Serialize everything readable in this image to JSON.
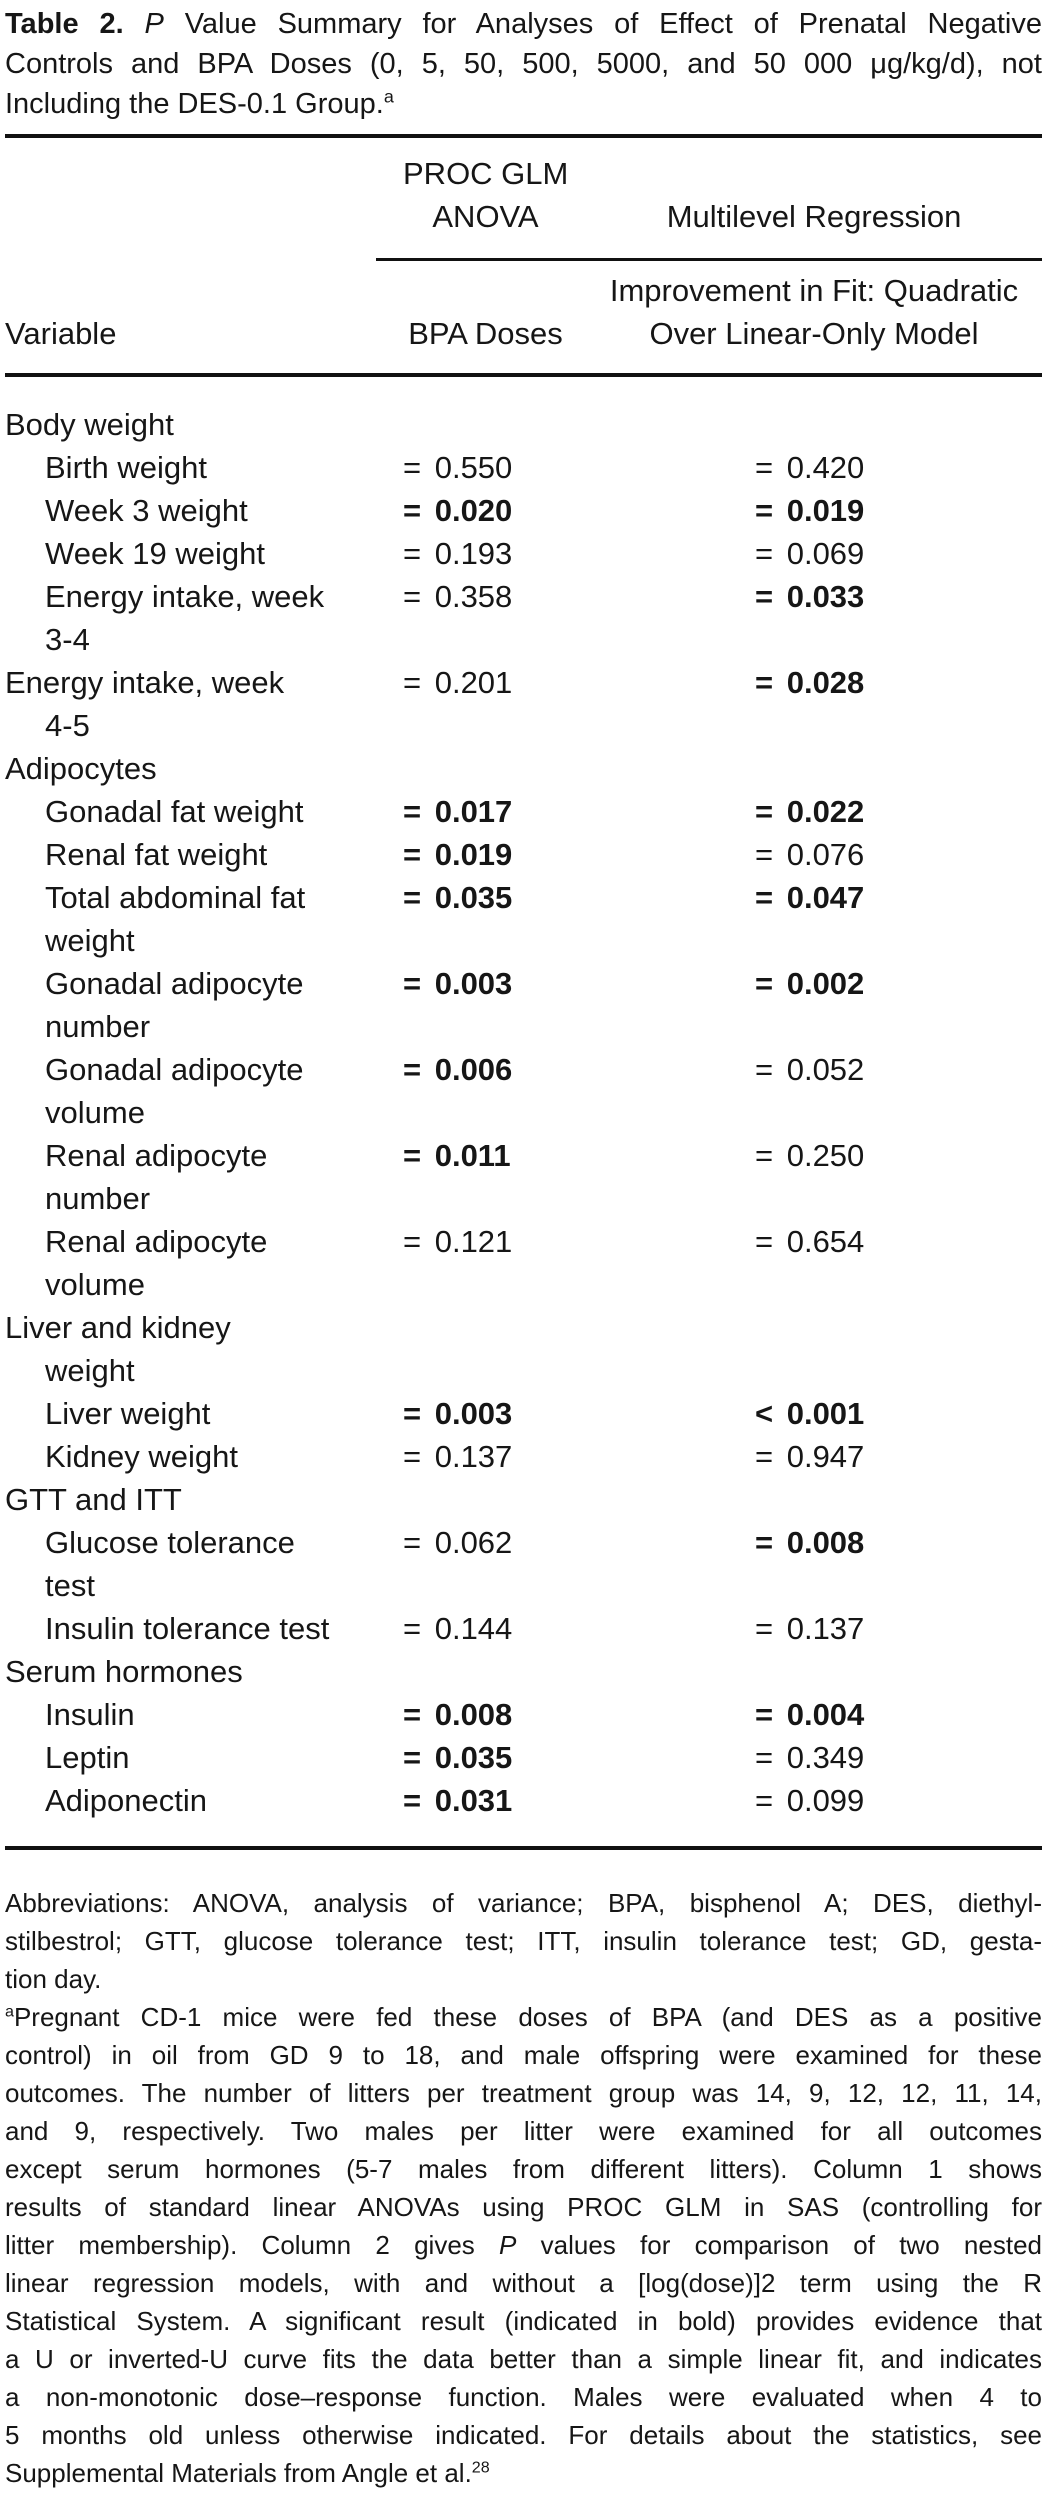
{
  "colors": {
    "background": "#ffffff",
    "text": "#161616",
    "rule": "#111111"
  },
  "doc": {
    "title_lines": [
      {
        "text": "**Table 2.** *P* Value Summary for Analyses of Effect of Prenatal Negative",
        "justify": true
      },
      {
        "text": "Controls and BPA Doses (0, 5, 50, 500, 5000, and 50 000 μg/kg/d), not",
        "justify": true
      },
      {
        "text": "Including the DES-0.1 Group.^a^",
        "justify": false
      }
    ]
  },
  "table": {
    "header": {
      "col1": "Variable",
      "group2": [
        "PROC GLM",
        "ANOVA"
      ],
      "group3": "Multilevel Regression",
      "col2": "BPA Doses",
      "col3": [
        "Improvement in Fit: Quadratic",
        "Over Linear-Only Model"
      ]
    },
    "rows": [
      {
        "type": "section",
        "indent": false,
        "lines": [
          "Body weight"
        ]
      },
      {
        "type": "item",
        "indent": true,
        "lines": [
          "Birth weight"
        ],
        "col1": "= 0.550",
        "col1_bold": false,
        "col2": "= 0.420",
        "col2_bold": false
      },
      {
        "type": "item",
        "indent": true,
        "lines": [
          "Week 3 weight"
        ],
        "col1": "= 0.020",
        "col1_bold": true,
        "col2": "= 0.019",
        "col2_bold": true
      },
      {
        "type": "item",
        "indent": true,
        "lines": [
          "Week 19 weight"
        ],
        "col1": "= 0.193",
        "col1_bold": false,
        "col2": "= 0.069",
        "col2_bold": false
      },
      {
        "type": "item",
        "indent": true,
        "lines": [
          "Energy intake, week",
          "3-4"
        ],
        "col1": "= 0.358",
        "col1_bold": false,
        "col2": "= 0.033",
        "col2_bold": true
      },
      {
        "type": "item",
        "indent": false,
        "lines": [
          "Energy intake, week",
          "4-5"
        ],
        "col1": "= 0.201",
        "col1_bold": false,
        "col2": "= 0.028",
        "col2_bold": true
      },
      {
        "type": "section",
        "indent": false,
        "lines": [
          "Adipocytes"
        ]
      },
      {
        "type": "item",
        "indent": true,
        "lines": [
          "Gonadal fat weight"
        ],
        "col1": "= 0.017",
        "col1_bold": true,
        "col2": "= 0.022",
        "col2_bold": true
      },
      {
        "type": "item",
        "indent": true,
        "lines": [
          "Renal fat weight"
        ],
        "col1": "= 0.019",
        "col1_bold": true,
        "col2": "= 0.076",
        "col2_bold": false
      },
      {
        "type": "item",
        "indent": true,
        "lines": [
          "Total abdominal fat",
          "weight"
        ],
        "col1": "= 0.035",
        "col1_bold": true,
        "col2": "= 0.047",
        "col2_bold": true
      },
      {
        "type": "item",
        "indent": true,
        "lines": [
          "Gonadal adipocyte",
          "number"
        ],
        "col1": "= 0.003",
        "col1_bold": true,
        "col2": "= 0.002",
        "col2_bold": true
      },
      {
        "type": "item",
        "indent": true,
        "lines": [
          "Gonadal adipocyte",
          "volume"
        ],
        "col1": "= 0.006",
        "col1_bold": true,
        "col2": "= 0.052",
        "col2_bold": false
      },
      {
        "type": "item",
        "indent": true,
        "lines": [
          "Renal adipocyte",
          "number"
        ],
        "col1": "= 0.011",
        "col1_bold": true,
        "col2": "= 0.250",
        "col2_bold": false
      },
      {
        "type": "item",
        "indent": true,
        "lines": [
          "Renal adipocyte",
          "volume"
        ],
        "col1": "= 0.121",
        "col1_bold": false,
        "col2": "= 0.654",
        "col2_bold": false
      },
      {
        "type": "section",
        "indent": false,
        "lines": [
          "Liver and kidney",
          "weight"
        ]
      },
      {
        "type": "item",
        "indent": true,
        "lines": [
          "Liver weight"
        ],
        "col1": "= 0.003",
        "col1_bold": true,
        "col2": "< 0.001",
        "col2_bold": true
      },
      {
        "type": "item",
        "indent": true,
        "lines": [
          "Kidney weight"
        ],
        "col1": "= 0.137",
        "col1_bold": false,
        "col2": "= 0.947",
        "col2_bold": false
      },
      {
        "type": "section",
        "indent": false,
        "lines": [
          "GTT and ITT"
        ]
      },
      {
        "type": "item",
        "indent": true,
        "lines": [
          "Glucose tolerance",
          "test"
        ],
        "col1": "= 0.062",
        "col1_bold": false,
        "col2": "= 0.008",
        "col2_bold": true
      },
      {
        "type": "item",
        "indent": true,
        "lines": [
          "Insulin tolerance test"
        ],
        "col1": "= 0.144",
        "col1_bold": false,
        "col2": "= 0.137",
        "col2_bold": false
      },
      {
        "type": "section",
        "indent": false,
        "lines": [
          "Serum hormones"
        ]
      },
      {
        "type": "item",
        "indent": true,
        "lines": [
          "Insulin"
        ],
        "col1": "= 0.008",
        "col1_bold": true,
        "col2": "= 0.004",
        "col2_bold": true
      },
      {
        "type": "item",
        "indent": true,
        "lines": [
          "Leptin"
        ],
        "col1": "= 0.035",
        "col1_bold": true,
        "col2": "= 0.349",
        "col2_bold": false
      },
      {
        "type": "item",
        "indent": true,
        "lines": [
          "Adiponectin"
        ],
        "col1": "= 0.031",
        "col1_bold": true,
        "col2": "= 0.099",
        "col2_bold": false
      }
    ]
  },
  "footnote": {
    "lines": [
      {
        "text": "Abbreviations: ANOVA, analysis of variance; BPA, bisphenol A; DES, diethyl-",
        "justify": true
      },
      {
        "text": "stilbestrol; GTT, glucose tolerance test; ITT, insulin tolerance test; GD, gesta-",
        "justify": true
      },
      {
        "text": "tion day.",
        "justify": false
      },
      {
        "text": "^a^Pregnant CD-1 mice were fed these doses of BPA (and DES as a positive",
        "justify": true
      },
      {
        "text": "control) in oil from GD 9 to 18, and male offspring were examined for these",
        "justify": true
      },
      {
        "text": "outcomes. The number of litters per treatment group was 14, 9, 12, 12, 11, 14,",
        "justify": true
      },
      {
        "text": "and 9, respectively. Two males per litter were examined for all outcomes",
        "justify": true
      },
      {
        "text": "except serum hormones (5-7 males from different litters). Column 1 shows",
        "justify": true
      },
      {
        "text": "results of standard linear ANOVAs using PROC GLM in SAS (controlling for",
        "justify": true
      },
      {
        "text": "litter membership). Column 2 gives *P* values for comparison of two nested",
        "justify": true
      },
      {
        "text": "linear regression models, with and without a [log(dose)]2 term using the R",
        "justify": true
      },
      {
        "text": "Statistical System. A significant result (indicated in bold) provides evidence that",
        "justify": true
      },
      {
        "text": "a U or inverted-U curve fits the data better than a simple linear fit, and indicates",
        "justify": true
      },
      {
        "text": "a non-monotonic dose–response function. Males were evaluated when 4 to",
        "justify": true
      },
      {
        "text": "5 months old unless otherwise indicated. For details about the statistics, see",
        "justify": true
      },
      {
        "text": "Supplemental Materials from Angle et al.^28^",
        "justify": false
      }
    ]
  }
}
